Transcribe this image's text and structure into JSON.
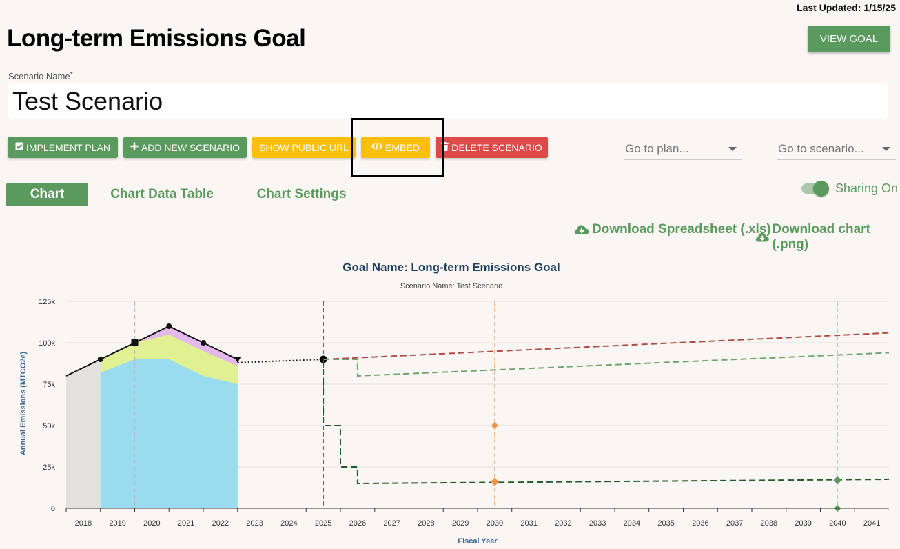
{
  "header": {
    "last_updated": "Last Updated: 1/15/25",
    "title": "Long-term Emissions Goal",
    "view_goal_label": "VIEW GOAL"
  },
  "scenario": {
    "label": "Scenario Name",
    "required_mark": "*",
    "value": "Test Scenario"
  },
  "actions": {
    "implement_plan": "IMPLEMENT PLAN",
    "add_new_scenario": "ADD NEW SCENARIO",
    "show_public_url": "SHOW PUBLIC URL",
    "embed": "EMBED",
    "delete_scenario": "DELETE SCENARIO",
    "go_to_plan": "Go to plan...",
    "go_to_scenario": "Go to scenario..."
  },
  "tabs": [
    {
      "label": "Chart",
      "active": true
    },
    {
      "label": "Chart Data Table",
      "active": false
    },
    {
      "label": "Chart Settings",
      "active": false
    }
  ],
  "sharing": {
    "label": "Sharing On",
    "on": true
  },
  "downloads": {
    "spreadsheet": "Download Spreadsheet (.xls)",
    "chart": "Download chart (.png)"
  },
  "colors": {
    "green": "#5a9a5e",
    "yellow": "#fcbf0a",
    "red": "#de4a48",
    "title_navy": "#1f3f60"
  },
  "chart_data": {
    "type": "area",
    "title": "Goal Name: Long-term Emissions Goal",
    "subtitle": "Scenario Name: Test Scenario",
    "xlabel": "Fiscal Year",
    "ylabel": "Annual Emissions (MTCO2e)",
    "ylim": [
      0,
      125000
    ],
    "yticks": [
      {
        "value": 0,
        "label": "0"
      },
      {
        "value": 25000,
        "label": "25k"
      },
      {
        "value": 50000,
        "label": "50k"
      },
      {
        "value": 75000,
        "label": "75k"
      },
      {
        "value": 100000,
        "label": "100k"
      },
      {
        "value": 125000,
        "label": "125k"
      }
    ],
    "x_categories": [
      "2018",
      "2019",
      "2020",
      "2021",
      "2022",
      "2023",
      "2024",
      "2025",
      "2026",
      "2027",
      "2028",
      "2029",
      "2030",
      "2031",
      "2032",
      "2033",
      "2034",
      "2035",
      "2036",
      "2037",
      "2038",
      "2039",
      "2040",
      "2041"
    ],
    "grid": true,
    "historical_gray": [
      {
        "x": 2017.5,
        "y": 80000
      },
      {
        "x": 2018.5,
        "y": 90000
      }
    ],
    "areas": [
      {
        "color": "#9adcef",
        "points": [
          [
            2018.5,
            82000
          ],
          [
            2019.5,
            90000
          ],
          [
            2020.5,
            90000
          ],
          [
            2021.5,
            80000
          ],
          [
            2022.5,
            75000
          ]
        ]
      },
      {
        "color": "#e0f092",
        "points": [
          [
            2018.5,
            90000
          ],
          [
            2019.5,
            100000
          ],
          [
            2020.5,
            105000
          ],
          [
            2021.5,
            95000
          ],
          [
            2022.5,
            86000
          ]
        ]
      },
      {
        "color": "#e4b8ec",
        "points": [
          [
            2018.5,
            90000
          ],
          [
            2019.5,
            100000
          ],
          [
            2020.5,
            110000
          ],
          [
            2021.5,
            100000
          ],
          [
            2022.5,
            90000
          ]
        ]
      }
    ],
    "actual_line": [
      [
        2017.5,
        80000
      ],
      [
        2018.5,
        90000
      ],
      [
        2019.5,
        100000
      ],
      [
        2020.5,
        110000
      ],
      [
        2021.5,
        100000
      ],
      [
        2022.5,
        90000
      ]
    ],
    "dotted_projection": [
      [
        2022.5,
        88000
      ],
      [
        2025,
        90000
      ]
    ],
    "bau_line": [
      [
        2025,
        90000
      ],
      [
        2041.5,
        106000
      ]
    ],
    "adjusted_bau_line": [
      [
        2025,
        90000
      ],
      [
        2026,
        90000
      ],
      [
        2026,
        80000
      ],
      [
        2041.5,
        94000
      ]
    ],
    "goal_step_line": [
      [
        2025,
        90000
      ],
      [
        2025,
        50000
      ],
      [
        2025.5,
        50000
      ],
      [
        2025.5,
        25000
      ],
      [
        2026,
        25000
      ],
      [
        2026,
        15000
      ],
      [
        2041.5,
        17500
      ]
    ],
    "vertical_markers": [
      {
        "x": 2019.5,
        "color": "#bbbbbb"
      },
      {
        "x": 2025,
        "color": "#444444"
      },
      {
        "x": 2030,
        "color": "#f5a86b"
      },
      {
        "x": 2040,
        "color": "#b5d3b7"
      }
    ],
    "interim_targets": [
      {
        "x": 2030,
        "y": 50000,
        "color": "#f0924a"
      },
      {
        "x": 2030,
        "y": 16000,
        "color": "#f0924a"
      },
      {
        "x": 2040,
        "y": 17000,
        "color": "#5a9a5e"
      },
      {
        "x": 2040,
        "y": 0,
        "color": "#5a9a5e"
      }
    ]
  }
}
